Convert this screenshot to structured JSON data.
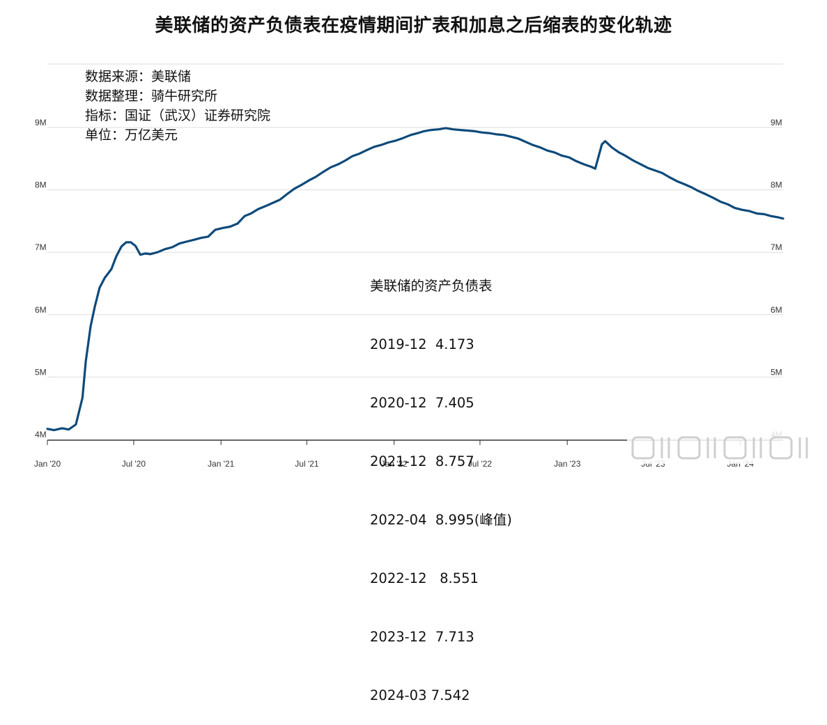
{
  "title": "美联储的资产负债表在疫情期间扩表和加息之后缩表的变化轨迹",
  "info_lines": [
    "数据来源：美联储",
    "数据整理：骑牛研究所",
    "指标：国证（武汉）证券研究院",
    "单位：万亿美元"
  ],
  "summary": {
    "heading": "美联储的资产负债表",
    "rows": [
      "2019-12  4.173",
      "2020-12  7.405",
      "2021-12  8.757",
      "2022-04  8.995(峰值)",
      "2022-12   8.551",
      "2023-12  7.713",
      "2024-03 7.542"
    ]
  },
  "colors": {
    "line": "#0d4a7a",
    "grid": "#dddddd",
    "axis": "#333333"
  },
  "chart_data": {
    "type": "line",
    "title": "",
    "xlabel": "",
    "ylabel": "",
    "x_ticks": [
      "Jan '20",
      "Jul '20",
      "Jan '21",
      "Jul '21",
      "Jan '22",
      "Jul '22",
      "Jan '23",
      "Jul '23",
      "Jan '24"
    ],
    "y_ticks_left": [
      "4M",
      "5M",
      "6M",
      "7M",
      "8M",
      "9M"
    ],
    "y_ticks_right": [
      "4M",
      "5M",
      "6M",
      "7M",
      "8M",
      "9M"
    ],
    "ylim": [
      4.0,
      9.0
    ],
    "xlim": [
      "2020-01-01",
      "2024-03-31"
    ],
    "grid": true,
    "series": [
      {
        "x": [
          "2020-01-01",
          "2020-01-15",
          "2020-02-01",
          "2020-02-15",
          "2020-03-01",
          "2020-03-15",
          "2020-03-22",
          "2020-04-01",
          "2020-04-10",
          "2020-04-20",
          "2020-05-01",
          "2020-05-15",
          "2020-05-25",
          "2020-06-05",
          "2020-06-15",
          "2020-06-25",
          "2020-07-05",
          "2020-07-15",
          "2020-07-25",
          "2020-08-05",
          "2020-08-20",
          "2020-09-05",
          "2020-09-20",
          "2020-10-05",
          "2020-10-20",
          "2020-11-05",
          "2020-11-20",
          "2020-12-05",
          "2020-12-20",
          "2021-01-05",
          "2021-01-20",
          "2021-02-05",
          "2021-02-20",
          "2021-03-05",
          "2021-03-20",
          "2021-04-05",
          "2021-04-20",
          "2021-05-05",
          "2021-05-20",
          "2021-06-05",
          "2021-06-20",
          "2021-07-05",
          "2021-07-20",
          "2021-08-05",
          "2021-08-20",
          "2021-09-05",
          "2021-09-20",
          "2021-10-05",
          "2021-10-20",
          "2021-11-05",
          "2021-11-20",
          "2021-12-05",
          "2021-12-20",
          "2022-01-05",
          "2022-01-20",
          "2022-02-05",
          "2022-02-20",
          "2022-03-05",
          "2022-03-20",
          "2022-04-05",
          "2022-04-20",
          "2022-05-05",
          "2022-05-20",
          "2022-06-05",
          "2022-06-20",
          "2022-07-05",
          "2022-07-20",
          "2022-08-05",
          "2022-08-20",
          "2022-09-05",
          "2022-09-20",
          "2022-10-05",
          "2022-10-20",
          "2022-11-05",
          "2022-11-20",
          "2022-12-05",
          "2022-12-20",
          "2023-01-05",
          "2023-01-20",
          "2023-02-05",
          "2023-02-20",
          "2023-03-01",
          "2023-03-15",
          "2023-03-22",
          "2023-04-05",
          "2023-04-20",
          "2023-05-05",
          "2023-05-20",
          "2023-06-05",
          "2023-06-20",
          "2023-07-05",
          "2023-07-20",
          "2023-08-05",
          "2023-08-20",
          "2023-09-05",
          "2023-09-20",
          "2023-10-05",
          "2023-10-20",
          "2023-11-05",
          "2023-11-20",
          "2023-12-05",
          "2023-12-20",
          "2024-01-05",
          "2024-01-20",
          "2024-02-05",
          "2024-02-20",
          "2024-03-05",
          "2024-03-20",
          "2024-03-31"
        ],
        "values": [
          4.17,
          4.15,
          4.18,
          4.16,
          4.24,
          4.67,
          5.25,
          5.81,
          6.13,
          6.43,
          6.59,
          6.73,
          6.93,
          7.09,
          7.16,
          7.16,
          7.1,
          6.96,
          6.98,
          6.97,
          7.0,
          7.05,
          7.08,
          7.14,
          7.17,
          7.2,
          7.23,
          7.25,
          7.36,
          7.39,
          7.41,
          7.46,
          7.58,
          7.62,
          7.69,
          7.74,
          7.79,
          7.84,
          7.93,
          8.02,
          8.08,
          8.15,
          8.21,
          8.29,
          8.36,
          8.41,
          8.47,
          8.54,
          8.58,
          8.64,
          8.69,
          8.72,
          8.76,
          8.79,
          8.83,
          8.88,
          8.91,
          8.94,
          8.96,
          8.97,
          8.99,
          8.97,
          8.96,
          8.95,
          8.94,
          8.92,
          8.91,
          8.89,
          8.88,
          8.85,
          8.82,
          8.77,
          8.72,
          8.68,
          8.63,
          8.6,
          8.55,
          8.52,
          8.46,
          8.41,
          8.37,
          8.34,
          8.73,
          8.78,
          8.68,
          8.6,
          8.54,
          8.47,
          8.41,
          8.35,
          8.31,
          8.27,
          8.2,
          8.14,
          8.09,
          8.04,
          7.98,
          7.93,
          7.87,
          7.81,
          7.77,
          7.71,
          7.68,
          7.66,
          7.62,
          7.61,
          7.58,
          7.56,
          7.54
        ]
      }
    ]
  },
  "watermark_text": "⊞Ⅲ⊞Ⅲ⊞Ⅲ"
}
